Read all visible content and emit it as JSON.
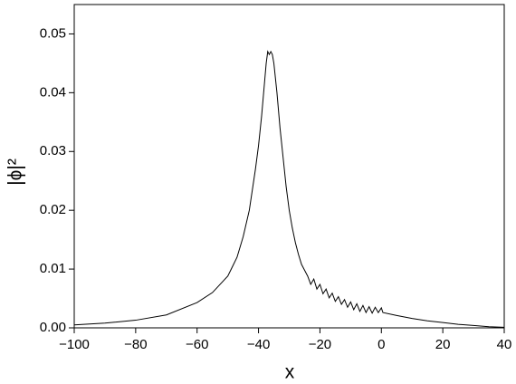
{
  "chart_data": {
    "type": "line",
    "x_label": "x",
    "y_label": "|ϕ|²",
    "xlim": [
      -100,
      40
    ],
    "ylim": [
      0,
      0.055
    ],
    "xticks": [
      {
        "value": -100,
        "label": "−100"
      },
      {
        "value": -80,
        "label": "−80"
      },
      {
        "value": -60,
        "label": "−60"
      },
      {
        "value": -40,
        "label": "−40"
      },
      {
        "value": -20,
        "label": "−20"
      },
      0,
      20,
      40
    ],
    "yticks": [
      {
        "value": 0,
        "label": "0.00"
      },
      {
        "value": 0.01,
        "label": "0.01"
      },
      {
        "value": 0.02,
        "label": "0.02"
      },
      {
        "value": 0.03,
        "label": "0.03"
      },
      {
        "value": 0.04,
        "label": "0.04"
      },
      {
        "value": 0.05,
        "label": "0.05"
      }
    ],
    "series": [
      {
        "color": "#000000",
        "x": [
          -100,
          -90,
          -80,
          -70,
          -60,
          -55,
          -50,
          -47,
          -45,
          -43,
          -42,
          -41,
          -40,
          -39,
          -38,
          -37.5,
          -37,
          -36.5,
          -36,
          -35.5,
          -35,
          -34,
          -33,
          -32,
          -31,
          -30,
          -29,
          -28,
          -27,
          -26,
          -25,
          -24,
          -23,
          -22,
          -21,
          -20,
          -19,
          -18,
          -17,
          -16,
          -15,
          -14,
          -13,
          -12,
          -11,
          -10,
          -9,
          -8,
          -7,
          -6,
          -5,
          -4,
          -3,
          -2,
          -1,
          0,
          0.5,
          5,
          10,
          15,
          20,
          25,
          30,
          35,
          40
        ],
        "values": [
          0.0005,
          0.0008,
          0.0013,
          0.0022,
          0.0043,
          0.006,
          0.0088,
          0.012,
          0.0155,
          0.02,
          0.0235,
          0.027,
          0.031,
          0.036,
          0.042,
          0.045,
          0.047,
          0.0465,
          0.047,
          0.0465,
          0.045,
          0.04,
          0.034,
          0.029,
          0.024,
          0.02,
          0.017,
          0.0145,
          0.0125,
          0.0108,
          0.0098,
          0.0088,
          0.0074,
          0.0083,
          0.0066,
          0.0074,
          0.0058,
          0.0066,
          0.0051,
          0.0059,
          0.0045,
          0.0053,
          0.004,
          0.0048,
          0.0035,
          0.0044,
          0.0031,
          0.0041,
          0.0028,
          0.0038,
          0.0026,
          0.0036,
          0.0025,
          0.0035,
          0.0026,
          0.0034,
          0.0026,
          0.0021,
          0.0016,
          0.0012,
          0.0009,
          0.0006,
          0.0004,
          0.0002,
          0.0001
        ]
      }
    ]
  }
}
